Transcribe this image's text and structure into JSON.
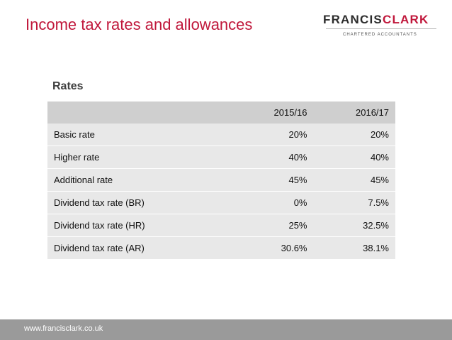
{
  "header": {
    "title": "Income tax rates and allowances"
  },
  "logo": {
    "part1": "FRANCIS",
    "part2": "CLARK",
    "subtitle": "CHARTERED ACCOUNTANTS",
    "brand_color": "#c0173b"
  },
  "section": {
    "heading": "Rates"
  },
  "table": {
    "columns": [
      "",
      "2015/16",
      "2016/17"
    ],
    "rows": [
      [
        "Basic rate",
        "20%",
        "20%"
      ],
      [
        "Higher rate",
        "40%",
        "40%"
      ],
      [
        "Additional rate",
        "45%",
        "45%"
      ],
      [
        "Dividend tax rate (BR)",
        "0%",
        "7.5%"
      ],
      [
        "Dividend tax rate (HR)",
        "25%",
        "32.5%"
      ],
      [
        "Dividend tax rate (AR)",
        "30.6%",
        "38.1%"
      ]
    ]
  },
  "footer": {
    "url": "www.francisclark.co.uk"
  }
}
